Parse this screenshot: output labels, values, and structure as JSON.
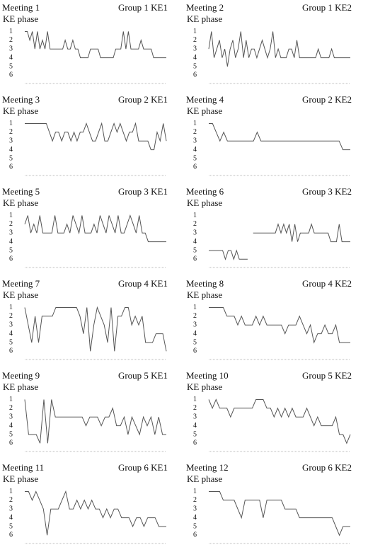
{
  "chart_data": [
    {
      "type": "line",
      "title": "Meeting 1",
      "subtitle": "Group 1 KE1",
      "y_label": "KE phase",
      "color": "#555555",
      "ylim": [
        6.7,
        0.8
      ],
      "yticks": [
        1,
        2,
        3,
        4,
        5,
        6
      ],
      "values": [
        1,
        1,
        2,
        1,
        3,
        1,
        3,
        2,
        3,
        1,
        3,
        3,
        3,
        3,
        3,
        3,
        2,
        3,
        3,
        2,
        3,
        3,
        4,
        4,
        4,
        4,
        3,
        3,
        3,
        3,
        4,
        4,
        4,
        4,
        4,
        4,
        3,
        3,
        3,
        1,
        3,
        1,
        3,
        3,
        3,
        3,
        2,
        3,
        3,
        3,
        3,
        4,
        4,
        4,
        4,
        4,
        4
      ]
    },
    {
      "type": "line",
      "title": "Meeting 2",
      "subtitle": "Group 1 KE2",
      "y_label": "KE phase",
      "color": "#555555",
      "ylim": [
        6.7,
        0.8
      ],
      "yticks": [
        1,
        2,
        3,
        4,
        5,
        6
      ],
      "values": [
        3,
        1,
        4,
        3,
        2,
        4,
        3,
        5,
        3,
        2,
        4,
        3,
        1,
        4,
        2,
        4,
        3,
        3,
        4,
        3,
        2,
        3,
        4,
        3,
        1,
        4,
        3,
        4,
        4,
        4,
        3,
        3,
        4,
        2,
        4,
        4,
        4,
        4,
        4,
        4,
        4,
        3,
        4,
        4,
        4,
        4,
        3,
        4,
        4,
        4,
        4,
        4,
        4,
        4
      ]
    },
    {
      "type": "line",
      "title": "Meeting 3",
      "subtitle": "Group 2 KE1",
      "y_label": "KE phase",
      "color": "#555555",
      "ylim": [
        6.7,
        0.8
      ],
      "yticks": [
        1,
        2,
        3,
        4,
        5,
        6
      ],
      "values": [
        1,
        1,
        1,
        1,
        1,
        1,
        1,
        1,
        2,
        3,
        2,
        2,
        3,
        2,
        2,
        3,
        2,
        3,
        2,
        2,
        1,
        2,
        3,
        3,
        2,
        1,
        3,
        3,
        2,
        1,
        2,
        1,
        2,
        3,
        2,
        2,
        1,
        3,
        3,
        3,
        3,
        4,
        4,
        2,
        3,
        1,
        3
      ]
    },
    {
      "type": "line",
      "title": "Meeting 4",
      "subtitle": "Group 2 KE2",
      "y_label": "KE phase",
      "color": "#555555",
      "ylim": [
        6.7,
        0.8
      ],
      "yticks": [
        1,
        2,
        3,
        4,
        5,
        6
      ],
      "values": [
        1,
        1,
        2,
        3,
        2,
        3,
        3,
        3,
        3,
        3,
        3,
        3,
        3,
        2,
        3,
        3,
        3,
        3,
        3,
        3,
        3,
        3,
        3,
        3,
        3,
        3,
        3,
        3,
        3,
        3,
        3,
        3,
        3,
        3,
        3,
        3,
        4,
        4,
        4
      ]
    },
    {
      "type": "line",
      "title": "Meeting 5",
      "subtitle": "Group 3 KE1",
      "y_label": "KE phase",
      "color": "#555555",
      "ylim": [
        6.7,
        0.8
      ],
      "yticks": [
        1,
        2,
        3,
        4,
        5,
        6
      ],
      "values": [
        2,
        1,
        3,
        2,
        3,
        1,
        3,
        3,
        3,
        3,
        1,
        3,
        3,
        3,
        2,
        3,
        1,
        2,
        3,
        1,
        3,
        3,
        3,
        2,
        3,
        1,
        2,
        3,
        1,
        2,
        3,
        1,
        3,
        3,
        2,
        1,
        2,
        3,
        1,
        3,
        3,
        4,
        4,
        4,
        4,
        4,
        4,
        4
      ]
    },
    {
      "type": "line",
      "title": "Meeting 6",
      "subtitle": "Group 3 KE2",
      "y_label": "KE phase",
      "color": "#555555",
      "ylim": [
        6.7,
        0.8
      ],
      "yticks": [
        1,
        2,
        3,
        4,
        5,
        6
      ],
      "values": [
        5,
        5,
        5,
        5,
        5,
        5,
        6,
        5,
        5,
        6,
        5,
        6,
        6,
        6,
        6,
        null,
        3,
        3,
        3,
        3,
        3,
        3,
        3,
        3,
        3,
        2,
        3,
        2,
        3,
        2,
        4,
        2,
        4,
        3,
        3,
        3,
        3,
        2,
        3,
        3,
        3,
        3,
        3,
        3,
        4,
        4,
        4,
        2,
        4,
        4,
        4,
        4
      ]
    },
    {
      "type": "line",
      "title": "Meeting 7",
      "subtitle": "Group 4 KE1",
      "y_label": "KE phase",
      "color": "#555555",
      "ylim": [
        6.7,
        0.8
      ],
      "yticks": [
        1,
        2,
        3,
        4,
        5,
        6
      ],
      "values": [
        1,
        3,
        5,
        2,
        5,
        2,
        2,
        2,
        2,
        1,
        1,
        1,
        1,
        1,
        1,
        1,
        2,
        4,
        1,
        6,
        3,
        1,
        2,
        3,
        5,
        1,
        6,
        2,
        2,
        1,
        1,
        3,
        2,
        3,
        2,
        5,
        5,
        5,
        4,
        4,
        4,
        6
      ]
    },
    {
      "type": "line",
      "title": "Meeting 8",
      "subtitle": "Group 4 KE2",
      "y_label": "KE phase",
      "color": "#555555",
      "ylim": [
        6.7,
        0.8
      ],
      "yticks": [
        1,
        2,
        3,
        4,
        5,
        6
      ],
      "values": [
        1,
        1,
        1,
        1,
        1,
        2,
        2,
        2,
        3,
        2,
        3,
        3,
        3,
        2,
        3,
        2,
        3,
        3,
        3,
        3,
        3,
        4,
        3,
        3,
        3,
        2,
        3,
        4,
        3,
        5,
        4,
        4,
        3,
        4,
        4,
        3,
        5,
        5,
        5,
        5
      ]
    },
    {
      "type": "line",
      "title": "Meeting 9",
      "subtitle": "Group 5 KE1",
      "y_label": "KE phase",
      "color": "#555555",
      "ylim": [
        6.7,
        0.8
      ],
      "yticks": [
        1,
        2,
        3,
        4,
        5,
        6
      ],
      "values": [
        1,
        5,
        5,
        5,
        6,
        1,
        6,
        1,
        3,
        3,
        3,
        3,
        3,
        3,
        3,
        3,
        4,
        3,
        3,
        3,
        4,
        3,
        3,
        2,
        4,
        4,
        3,
        5,
        3,
        4,
        5,
        3,
        4,
        3,
        5,
        3,
        5,
        5
      ]
    },
    {
      "type": "line",
      "title": "Meeting 10",
      "subtitle": "Group 5 KE2",
      "y_label": "KE phase",
      "color": "#555555",
      "ylim": [
        6.7,
        0.8
      ],
      "yticks": [
        1,
        2,
        3,
        4,
        5,
        6
      ],
      "values": [
        1,
        2,
        1,
        2,
        2,
        2,
        3,
        2,
        2,
        2,
        2,
        2,
        2,
        1,
        1,
        1,
        2,
        2,
        3,
        2,
        3,
        2,
        3,
        2,
        3,
        3,
        3,
        2,
        3,
        4,
        3,
        4,
        4,
        4,
        4,
        3,
        5,
        5,
        6,
        5
      ]
    },
    {
      "type": "line",
      "title": "Meeting 11",
      "subtitle": "Group 6 KE1",
      "y_label": "KE phase",
      "color": "#555555",
      "ylim": [
        6.7,
        0.8
      ],
      "yticks": [
        1,
        2,
        3,
        4,
        5,
        6
      ],
      "values": [
        1,
        1,
        2,
        1,
        2,
        3,
        6,
        3,
        3,
        3,
        2,
        1,
        3,
        3,
        2,
        3,
        2,
        3,
        2,
        3,
        3,
        4,
        3,
        4,
        3,
        3,
        4,
        4,
        4,
        5,
        4,
        4,
        5,
        4,
        4,
        4,
        5,
        5,
        5
      ]
    },
    {
      "type": "line",
      "title": "Meeting 12",
      "subtitle": "Group 6 KE2",
      "y_label": "KE phase",
      "color": "#555555",
      "ylim": [
        6.7,
        0.8
      ],
      "yticks": [
        1,
        2,
        3,
        4,
        5,
        6
      ],
      "values": [
        1,
        1,
        1,
        1,
        2,
        2,
        2,
        2,
        3,
        4,
        2,
        2,
        2,
        2,
        2,
        4,
        2,
        2,
        2,
        2,
        2,
        3,
        3,
        3,
        3,
        4,
        4,
        4,
        4,
        4,
        4,
        4,
        4,
        4,
        4,
        5,
        6,
        5,
        5,
        5
      ]
    }
  ]
}
